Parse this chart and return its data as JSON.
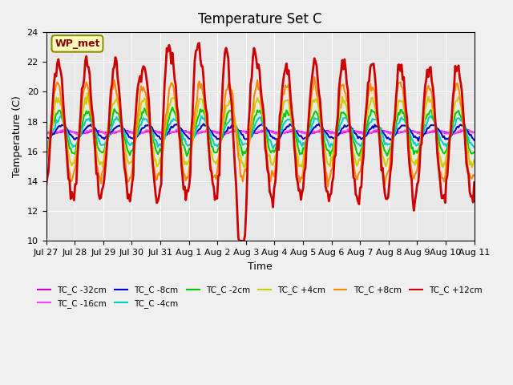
{
  "title": "Temperature Set C",
  "xlabel": "Time",
  "ylabel": "Temperature (C)",
  "ylim": [
    10,
    24
  ],
  "yticks": [
    10,
    12,
    14,
    16,
    18,
    20,
    22,
    24
  ],
  "plot_bg_color": "#e8e8e8",
  "fig_bg_color": "#f0f0f0",
  "wp_met_label": "WP_met",
  "wp_met_bg": "#ffffc0",
  "wp_met_border": "#8B8B00",
  "wp_met_text_color": "#8B0000",
  "series": [
    {
      "label": "TC_C -32cm",
      "color": "#cc00cc",
      "lw": 1.5
    },
    {
      "label": "TC_C -16cm",
      "color": "#ff44ff",
      "lw": 1.5
    },
    {
      "label": "TC_C -8cm",
      "color": "#0000cc",
      "lw": 1.5
    },
    {
      "label": "TC_C -4cm",
      "color": "#00cccc",
      "lw": 1.5
    },
    {
      "label": "TC_C -2cm",
      "color": "#00cc00",
      "lw": 1.5
    },
    {
      "label": "TC_C +4cm",
      "color": "#cccc00",
      "lw": 1.5
    },
    {
      "label": "TC_C +8cm",
      "color": "#ff8800",
      "lw": 1.5
    },
    {
      "label": "TC_C +12cm",
      "color": "#cc0000",
      "lw": 2.0
    }
  ],
  "xtick_labels": [
    "Jul 27",
    "Jul 28",
    "Jul 29",
    "Jul 30",
    "Jul 31",
    "Aug 1",
    "Aug 2",
    "Aug 3",
    "Aug 4",
    "Aug 5",
    "Aug 6",
    "Aug 7",
    "Aug 8",
    "Aug 9",
    "Aug 10",
    "Aug 11"
  ],
  "n_points": 384,
  "days": 15
}
